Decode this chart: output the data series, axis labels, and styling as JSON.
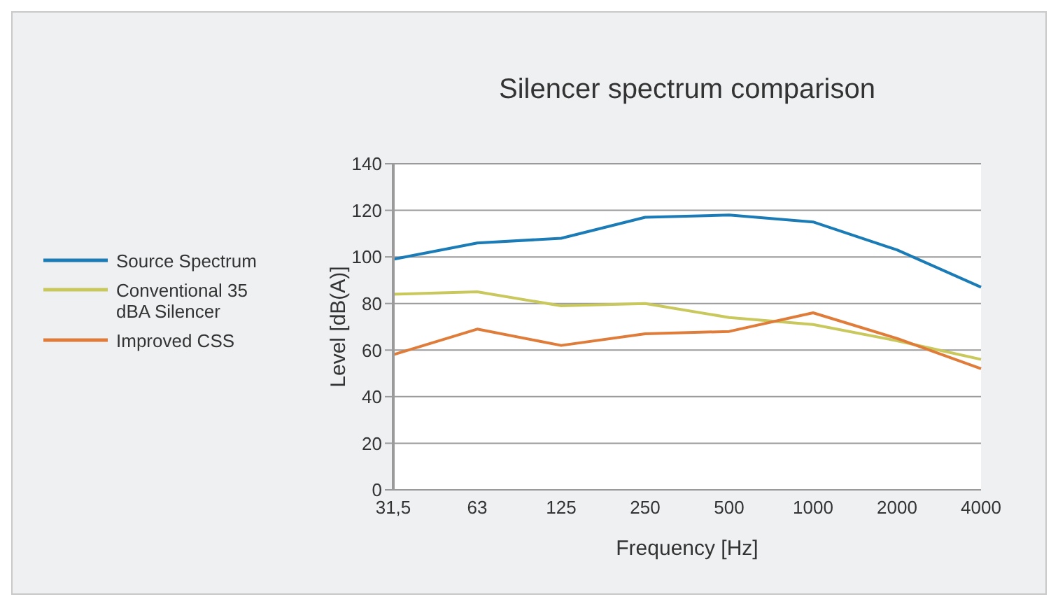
{
  "chart_data": {
    "type": "line",
    "title": "Silencer spectrum comparison",
    "xlabel": "Frequency [Hz]",
    "ylabel": "Level [dB(A)]",
    "categories": [
      "31,5",
      "63",
      "125",
      "250",
      "500",
      "1000",
      "2000",
      "4000"
    ],
    "series": [
      {
        "name": "Source Spectrum",
        "color": "#1a7bb6",
        "values": [
          99,
          106,
          108,
          117,
          118,
          115,
          103,
          87
        ]
      },
      {
        "name": "Conventional 35 dBA Silencer",
        "color": "#c9c85c",
        "values": [
          84,
          85,
          79,
          80,
          74,
          71,
          64,
          56
        ]
      },
      {
        "name": "Improved CSS",
        "color": "#e07c3a",
        "values": [
          58,
          69,
          62,
          67,
          68,
          76,
          65,
          52
        ]
      }
    ],
    "ylim": [
      0,
      140
    ],
    "yticks": [
      0,
      20,
      40,
      60,
      80,
      100,
      120,
      140
    ],
    "grid": "y",
    "legend": "left",
    "marker": "none",
    "line_style": "solid"
  }
}
